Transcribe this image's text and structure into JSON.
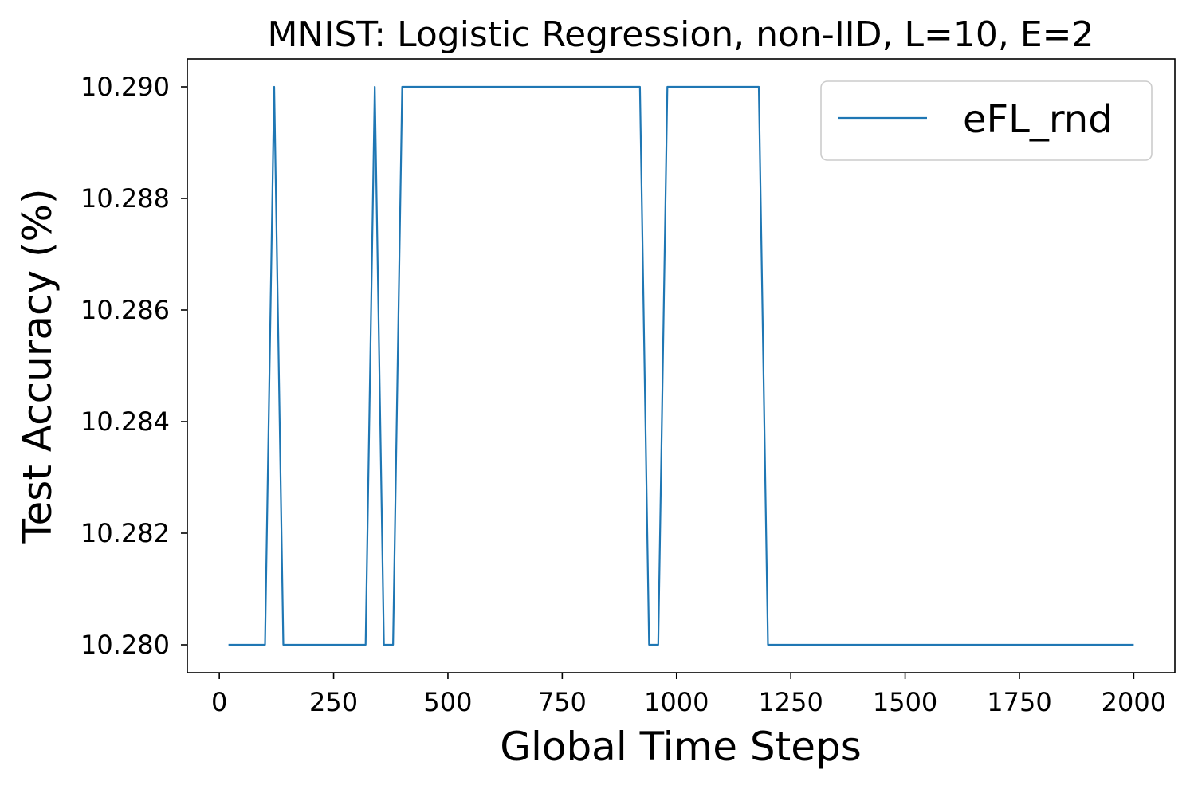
{
  "chart_data": {
    "type": "line",
    "title": "MNIST: Logistic Regression, non-IID, L=10, E=2",
    "xlabel": "Global Time Steps",
    "ylabel": "Test Accuracy (%)",
    "xlim": [
      -70,
      2090
    ],
    "ylim": [
      10.2795,
      10.2905
    ],
    "xticks": [
      0,
      250,
      500,
      750,
      1000,
      1250,
      1500,
      1750,
      2000
    ],
    "xtick_labels": [
      "0",
      "250",
      "500",
      "750",
      "1000",
      "1250",
      "1500",
      "1750",
      "2000"
    ],
    "yticks": [
      10.28,
      10.282,
      10.284,
      10.286,
      10.288,
      10.29
    ],
    "ytick_labels": [
      "10.280",
      "10.282",
      "10.284",
      "10.286",
      "10.288",
      "10.290"
    ],
    "grid": false,
    "legend_position": "top-right",
    "series": [
      {
        "name": "eFL_rnd",
        "color": "#1f77b4",
        "x": [
          20,
          40,
          60,
          80,
          100,
          120,
          140,
          160,
          180,
          200,
          220,
          240,
          260,
          280,
          300,
          320,
          340,
          360,
          380,
          400,
          420,
          440,
          460,
          480,
          500,
          520,
          540,
          560,
          580,
          600,
          620,
          640,
          660,
          680,
          700,
          720,
          740,
          760,
          780,
          800,
          820,
          840,
          860,
          880,
          900,
          920,
          940,
          960,
          980,
          1000,
          1020,
          1040,
          1060,
          1080,
          1100,
          1120,
          1140,
          1160,
          1180,
          1200,
          1220,
          1240,
          1260,
          1280,
          1300,
          1320,
          1340,
          1360,
          1380,
          1400,
          1420,
          1440,
          1460,
          1480,
          1500,
          1520,
          1540,
          1560,
          1580,
          1600,
          1620,
          1640,
          1660,
          1680,
          1700,
          1720,
          1740,
          1760,
          1780,
          1800,
          1820,
          1840,
          1860,
          1880,
          1900,
          1920,
          1940,
          1960,
          1980,
          2000
        ],
        "y": [
          10.28,
          10.28,
          10.28,
          10.28,
          10.28,
          10.29,
          10.28,
          10.28,
          10.28,
          10.28,
          10.28,
          10.28,
          10.28,
          10.28,
          10.28,
          10.28,
          10.29,
          10.28,
          10.28,
          10.29,
          10.29,
          10.29,
          10.29,
          10.29,
          10.29,
          10.29,
          10.29,
          10.29,
          10.29,
          10.29,
          10.29,
          10.29,
          10.29,
          10.29,
          10.29,
          10.29,
          10.29,
          10.29,
          10.29,
          10.29,
          10.29,
          10.29,
          10.29,
          10.29,
          10.29,
          10.29,
          10.28,
          10.28,
          10.29,
          10.29,
          10.29,
          10.29,
          10.29,
          10.29,
          10.29,
          10.29,
          10.29,
          10.29,
          10.29,
          10.28,
          10.28,
          10.28,
          10.28,
          10.28,
          10.28,
          10.28,
          10.28,
          10.28,
          10.28,
          10.28,
          10.28,
          10.28,
          10.28,
          10.28,
          10.28,
          10.28,
          10.28,
          10.28,
          10.28,
          10.28,
          10.28,
          10.28,
          10.28,
          10.28,
          10.28,
          10.28,
          10.28,
          10.28,
          10.28,
          10.28,
          10.28,
          10.28,
          10.28,
          10.28,
          10.28,
          10.28,
          10.28,
          10.28,
          10.28,
          10.28
        ]
      }
    ]
  }
}
